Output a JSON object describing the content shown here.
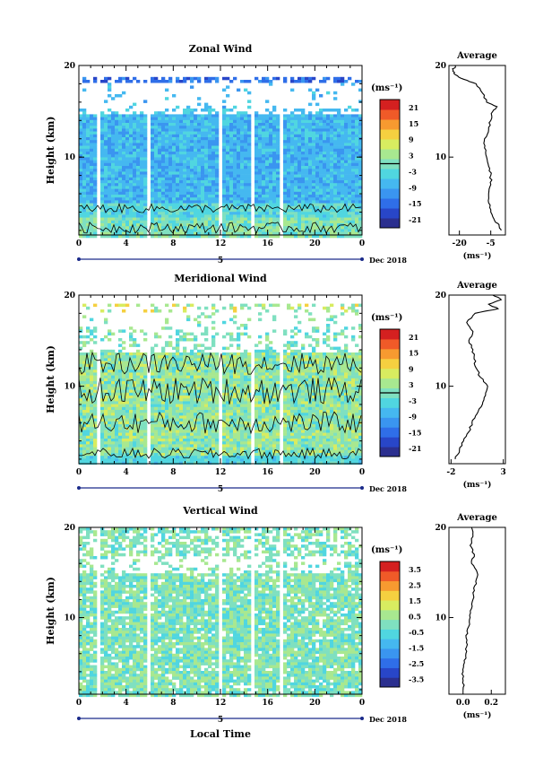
{
  "date_label": "Dec 2018",
  "xlabel": "Local Time",
  "height_label": "Height (km)",
  "unit_label": "(ms⁻¹)",
  "average_title": "Average",
  "chart_data": [
    {
      "type": "heatmap",
      "title": "Zonal Wind",
      "x_ticks": [
        "0",
        "4",
        "8",
        "12",
        "16",
        "20",
        "0"
      ],
      "xlim": [
        0,
        24
      ],
      "day_label": "5",
      "ylabel": "Height (km)",
      "ylim": [
        1.5,
        20
      ],
      "y_ticks": [
        10,
        20
      ],
      "colorbar_ticks": [
        "21",
        "15",
        "9",
        "3",
        "-3",
        "-9",
        "-15",
        "-21"
      ],
      "colorbar_range": [
        -24,
        24
      ],
      "contour_level": 0,
      "dominant_color": "#3a7fe0",
      "average_profile": {
        "xlim": [
          -25,
          2
        ],
        "x_ticks": [
          "-20",
          "-5"
        ],
        "xlabel": "(ms⁻¹)",
        "height_km": [
          2,
          2.5,
          3,
          4,
          5,
          6,
          7,
          8,
          9,
          10,
          11,
          12,
          13,
          14,
          15,
          15.5,
          16,
          17,
          18,
          18.5,
          19,
          19.5,
          20
        ],
        "value": [
          0,
          -1,
          -3,
          -5,
          -6,
          -6,
          -5,
          -5,
          -6,
          -7,
          -8,
          -8,
          -6,
          -5,
          -4,
          -2,
          -7,
          -9,
          -12,
          -18,
          -22,
          -23,
          -22
        ]
      }
    },
    {
      "type": "heatmap",
      "title": "Meridional Wind",
      "x_ticks": [
        "0",
        "4",
        "8",
        "12",
        "16",
        "20",
        "0"
      ],
      "xlim": [
        0,
        24
      ],
      "day_label": "5",
      "ylabel": "Height (km)",
      "ylim": [
        1.5,
        20
      ],
      "y_ticks": [
        10,
        20
      ],
      "colorbar_ticks": [
        "21",
        "15",
        "9",
        "3",
        "-3",
        "-9",
        "-15",
        "-21"
      ],
      "colorbar_range": [
        -24,
        24
      ],
      "contour_level": 0,
      "dominant_color": "#7fd8b0",
      "average_profile": {
        "xlim": [
          -2.2,
          3.2
        ],
        "x_ticks": [
          "-2",
          "3"
        ],
        "xlabel": "(ms⁻¹)",
        "height_km": [
          2,
          3,
          4,
          5,
          6,
          7,
          8,
          9,
          10,
          11,
          12,
          13,
          14,
          15,
          16,
          17,
          18,
          18.5,
          19,
          19.5,
          20
        ],
        "value": [
          -1.6,
          -1.2,
          -0.8,
          -0.3,
          0,
          0.5,
          1.0,
          1.3,
          1.5,
          0.8,
          0.4,
          0.2,
          0.1,
          -0.3,
          0.1,
          -0.5,
          0.3,
          2.5,
          1.6,
          2.8,
          2.0
        ]
      }
    },
    {
      "type": "heatmap",
      "title": "Vertical Wind",
      "x_ticks": [
        "0",
        "4",
        "8",
        "12",
        "16",
        "20",
        "0"
      ],
      "xlim": [
        0,
        24
      ],
      "day_label": "5",
      "ylabel": "Height (km)",
      "xlabel": "Local Time",
      "ylim": [
        1.5,
        20
      ],
      "y_ticks": [
        10,
        20
      ],
      "colorbar_ticks": [
        "3.5",
        "2.5",
        "1.5",
        "0.5",
        "-0.5",
        "-1.5",
        "-2.5",
        "-3.5"
      ],
      "colorbar_range": [
        -4,
        4
      ],
      "dominant_color": "#7fe0d0",
      "average_profile": {
        "xlim": [
          -0.1,
          0.3
        ],
        "x_ticks": [
          "0.0",
          "0.2"
        ],
        "xlabel": "(ms⁻¹)",
        "height_km": [
          2,
          3,
          4,
          5,
          6,
          7,
          8,
          9,
          10,
          11,
          12,
          13,
          14,
          15,
          16,
          17,
          18,
          19,
          20
        ],
        "value": [
          0.0,
          0.0,
          0.0,
          0.01,
          0.02,
          0.03,
          0.02,
          0.04,
          0.05,
          0.06,
          0.07,
          0.08,
          0.09,
          0.1,
          0.06,
          0.08,
          0.05,
          0.07,
          0.06
        ]
      }
    }
  ]
}
